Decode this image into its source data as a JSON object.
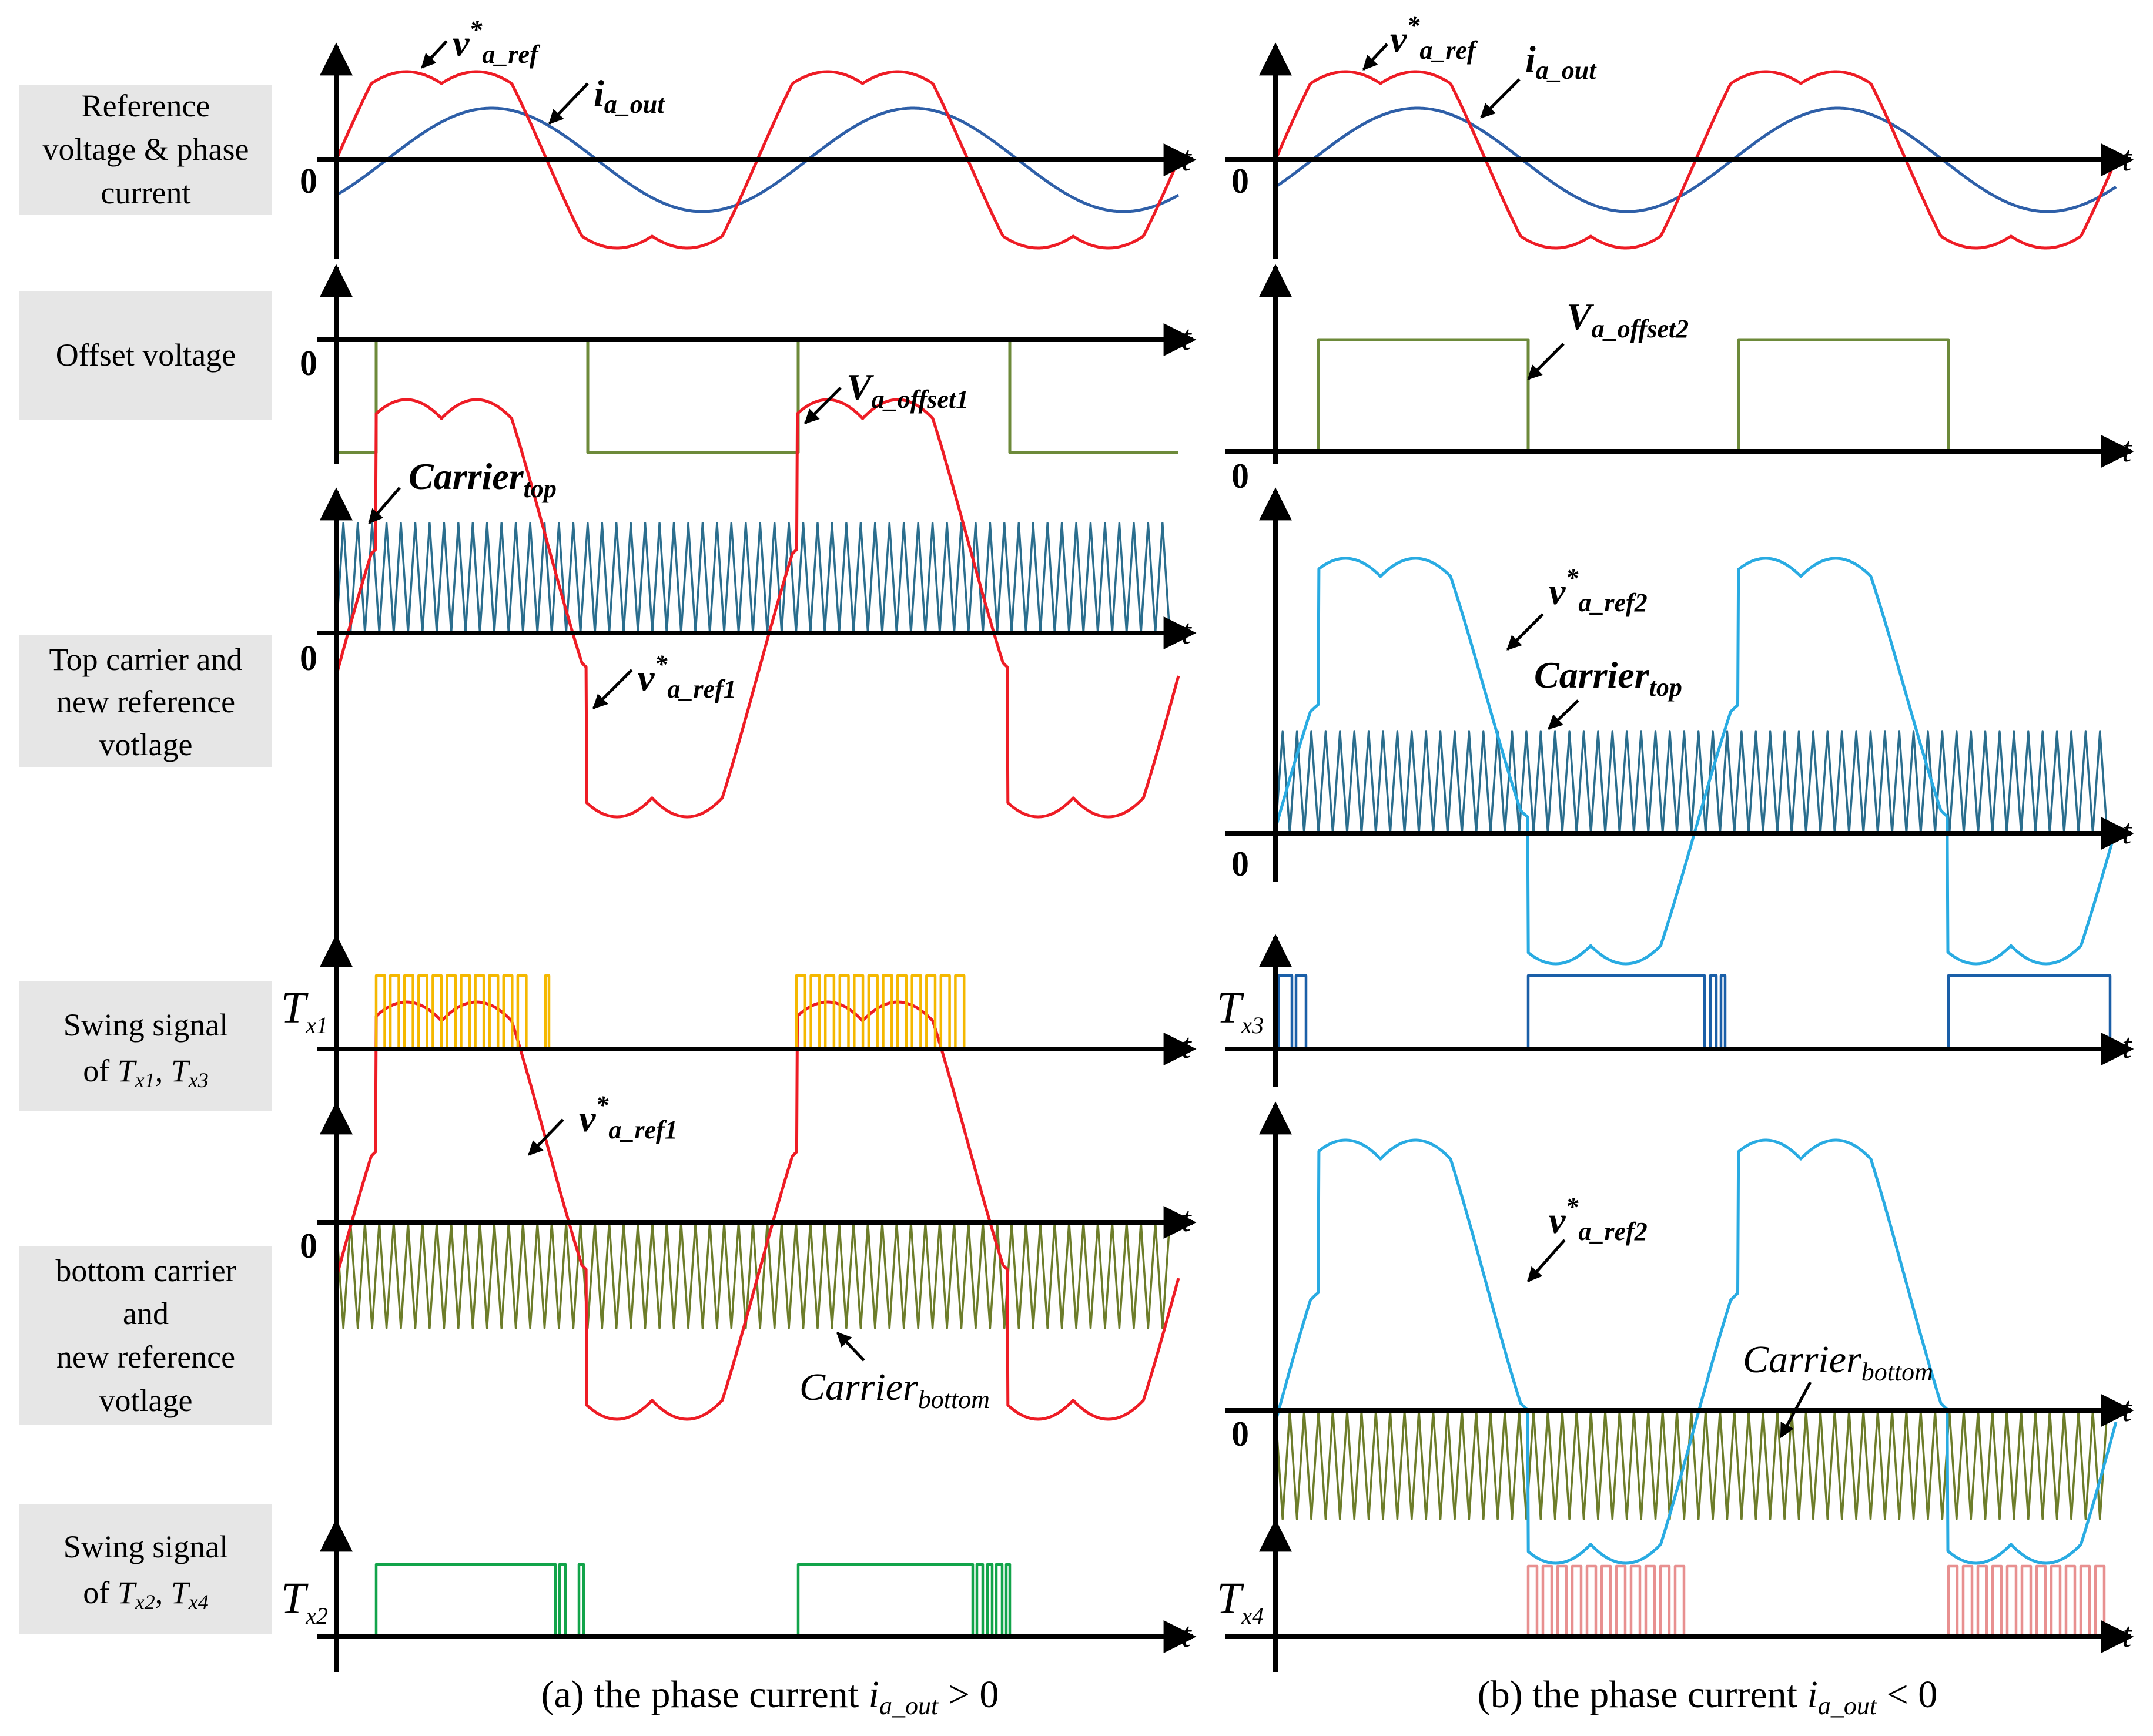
{
  "figure": {
    "captions": {
      "a_prefix": "(a) the phase current ",
      "b_prefix": "(b) the phase current ",
      "var": "i",
      "var_sub": "a_out",
      "a_suffix": " > 0",
      "b_suffix": " < 0"
    },
    "row_labels": [
      {
        "lines": [
          "Reference",
          "voltage & phase",
          "current"
        ]
      },
      {
        "lines": [
          "Offset voltage"
        ]
      },
      {
        "lines": [
          "Top carrier and",
          "new reference",
          "votlage"
        ]
      },
      {
        "lines": [
          "Swing signal",
          "of ",
          ", "
        ],
        "subs": [
          [
            "T",
            "x1"
          ],
          [
            "T",
            "x3"
          ]
        ]
      },
      {
        "lines": [
          "bottom carrier",
          "and",
          "new reference",
          "votlage"
        ]
      },
      {
        "lines": [
          "Swing signal",
          "of ",
          ", "
        ],
        "subs": [
          [
            "T",
            "x2"
          ],
          [
            "T",
            "x4"
          ]
        ]
      }
    ],
    "axis": {
      "zero": "0",
      "t": "t"
    },
    "annotations": {
      "v_ref": {
        "base": "v",
        "sup": "*",
        "sub": "a_ref"
      },
      "i_out": {
        "base": "i",
        "sub": "a_out"
      },
      "v_offset1": {
        "base": "V",
        "sub": "a_offset1"
      },
      "v_offset2": {
        "base": "V",
        "sub": "a_offset2"
      },
      "carrier_top": {
        "base": "Carrier",
        "sub": "top"
      },
      "carrier_bottom": {
        "base": "Carrier",
        "sub": "bottom"
      },
      "v_ref1": {
        "base": "v",
        "sup": "*",
        "sub": "a_ref1"
      },
      "v_ref2": {
        "base": "v",
        "sup": "*",
        "sub": "a_ref2"
      },
      "tx1": {
        "base": "T",
        "sub": "x1"
      },
      "tx2": {
        "base": "T",
        "sub": "x2"
      },
      "tx3": {
        "base": "T",
        "sub": "x3"
      },
      "tx4": {
        "base": "T",
        "sub": "x4"
      }
    },
    "colors": {
      "ref": "#ee1c25",
      "current": "#2e5fa8",
      "offset": "#6d8a3a",
      "carrier_top": "#2b6e8e",
      "carrier_bottom": "#6d7d2a",
      "ref2": "#29abe2",
      "tx1": "#f5b800",
      "tx2": "#12a44a",
      "tx3": "#1a5fa8",
      "tx4": "#e89090",
      "label_bg": "#e6e6e6"
    }
  }
}
